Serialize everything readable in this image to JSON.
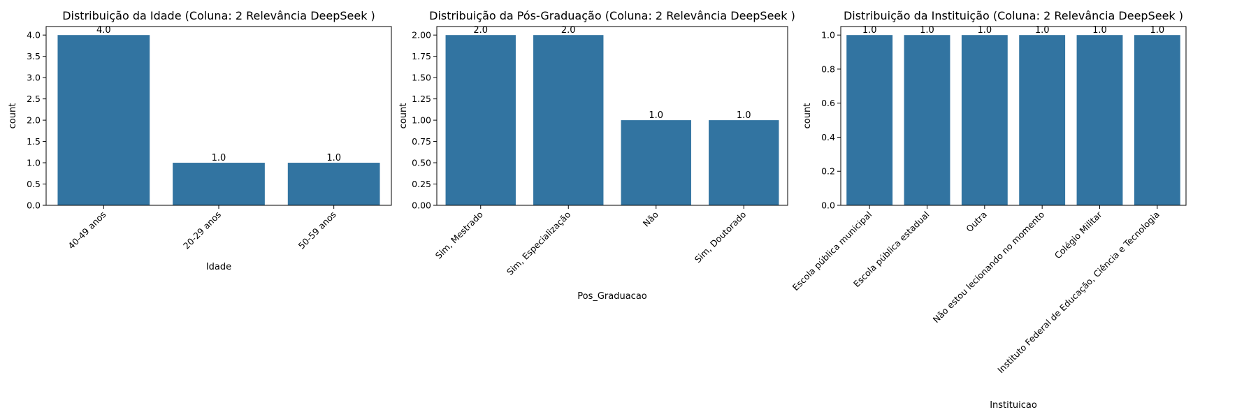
{
  "charts": [
    {
      "type": "bar",
      "title": "Distribuição da Idade (Coluna: 2 Relevância DeepSeek )",
      "xlabel": "Idade",
      "ylabel": "count",
      "categories": [
        "40-49 anos",
        "20-29 anos",
        "50-59 anos"
      ],
      "values": [
        4,
        1,
        1
      ],
      "data_labels": [
        "4.0",
        "1.0",
        "1.0"
      ],
      "yticks": [
        0,
        0.5,
        1.0,
        1.5,
        2.0,
        2.5,
        3.0,
        3.5,
        4.0
      ],
      "ytick_labels": [
        "0.0",
        "0.5",
        "1.0",
        "1.5",
        "2.0",
        "2.5",
        "3.0",
        "3.5",
        "4.0"
      ],
      "ylim": [
        0,
        4.2
      ],
      "bar_color": "#3274a1",
      "grid": false,
      "x_tick_rotation": 45
    },
    {
      "type": "bar",
      "title": "Distribuição da Pós-Graduação (Coluna: 2 Relevância DeepSeek )",
      "xlabel": "Pos_Graduacao",
      "ylabel": "count",
      "categories": [
        "Sim, Mestrado",
        "Sim, Especialização",
        "Não",
        "Sim, Doutorado"
      ],
      "values": [
        2,
        2,
        1,
        1
      ],
      "data_labels": [
        "2.0",
        "2.0",
        "1.0",
        "1.0"
      ],
      "yticks": [
        0,
        0.25,
        0.5,
        0.75,
        1.0,
        1.25,
        1.5,
        1.75,
        2.0
      ],
      "ytick_labels": [
        "0.00",
        "0.25",
        "0.50",
        "0.75",
        "1.00",
        "1.25",
        "1.50",
        "1.75",
        "2.00"
      ],
      "ylim": [
        0,
        2.1
      ],
      "bar_color": "#3274a1",
      "grid": false,
      "x_tick_rotation": 45
    },
    {
      "type": "bar",
      "title": "Distribuição da Instituição (Coluna: 2 Relevância DeepSeek )",
      "xlabel": "Instituicao",
      "ylabel": "count",
      "categories": [
        "Escola pública municipal",
        "Escola pública estadual",
        "Outra",
        "Não estou lecionando no momento",
        "Colégio Militar",
        "Instituto Federal de Educação, Ciência e Tecnologia"
      ],
      "values": [
        1,
        1,
        1,
        1,
        1,
        1
      ],
      "data_labels": [
        "1.0",
        "1.0",
        "1.0",
        "1.0",
        "1.0",
        "1.0"
      ],
      "yticks": [
        0,
        0.2,
        0.4,
        0.6,
        0.8,
        1.0
      ],
      "ytick_labels": [
        "0.0",
        "0.2",
        "0.4",
        "0.6",
        "0.8",
        "1.0"
      ],
      "ylim": [
        0,
        1.05
      ],
      "bar_color": "#3274a1",
      "grid": false,
      "x_tick_rotation": 45
    }
  ]
}
